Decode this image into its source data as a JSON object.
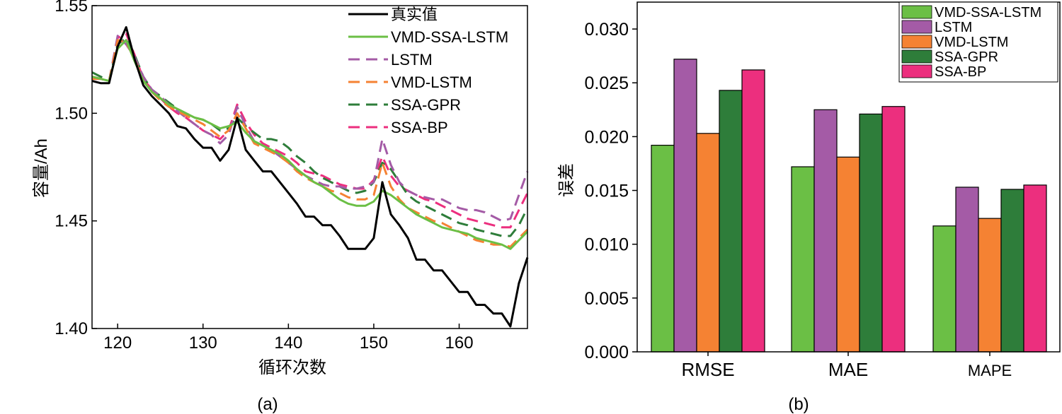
{
  "colors": {
    "actual": "#000000",
    "vmd_ssa_lstm": "#6bbf45",
    "lstm": "#a45ba6",
    "vmd_lstm": "#f58233",
    "ssa_gpr": "#2e7d3a",
    "ssa_bp": "#ec2f7e"
  },
  "chart_data": [
    {
      "id": "a",
      "type": "line",
      "panel_label": "(a)",
      "xlabel": "循环次数",
      "ylabel": "容量/Ah",
      "xlim": [
        117,
        168
      ],
      "ylim": [
        1.4,
        1.55
      ],
      "xticks": [
        120,
        130,
        140,
        150,
        160
      ],
      "yticks": [
        "1.40",
        "1.45",
        "1.50",
        "1.55"
      ],
      "legend_position": "top-right",
      "x": [
        117,
        118,
        119,
        120,
        121,
        122,
        123,
        124,
        125,
        126,
        127,
        128,
        129,
        130,
        131,
        132,
        133,
        134,
        135,
        136,
        137,
        138,
        139,
        140,
        141,
        142,
        143,
        144,
        145,
        146,
        147,
        148,
        149,
        150,
        151,
        152,
        153,
        154,
        155,
        156,
        157,
        158,
        159,
        160,
        161,
        162,
        163,
        164,
        165,
        166,
        167,
        168
      ],
      "series": [
        {
          "name": "真实值",
          "style": "solid",
          "colorKey": "actual",
          "values": [
            1.515,
            1.514,
            1.514,
            1.531,
            1.54,
            1.525,
            1.513,
            1.508,
            1.504,
            1.5,
            1.494,
            1.493,
            1.488,
            1.484,
            1.484,
            1.478,
            1.483,
            1.498,
            1.483,
            1.478,
            1.473,
            1.473,
            1.468,
            1.463,
            1.458,
            1.452,
            1.452,
            1.448,
            1.448,
            1.443,
            1.437,
            1.437,
            1.437,
            1.442,
            1.468,
            1.453,
            1.448,
            1.442,
            1.432,
            1.432,
            1.427,
            1.427,
            1.422,
            1.417,
            1.417,
            1.411,
            1.411,
            1.407,
            1.407,
            1.401,
            1.421,
            1.433
          ]
        },
        {
          "name": "VMD-SSA-LSTM",
          "style": "solid",
          "colorKey": "vmd_ssa_lstm",
          "values": [
            1.517,
            1.516,
            1.515,
            1.53,
            1.534,
            1.524,
            1.515,
            1.51,
            1.507,
            1.504,
            1.502,
            1.5,
            1.498,
            1.497,
            1.495,
            1.493,
            1.494,
            1.496,
            1.491,
            1.487,
            1.485,
            1.483,
            1.481,
            1.478,
            1.474,
            1.471,
            1.468,
            1.466,
            1.463,
            1.46,
            1.458,
            1.457,
            1.457,
            1.459,
            1.464,
            1.462,
            1.459,
            1.456,
            1.453,
            1.451,
            1.449,
            1.447,
            1.446,
            1.445,
            1.444,
            1.442,
            1.441,
            1.44,
            1.439,
            1.437,
            1.441,
            1.445
          ]
        },
        {
          "name": "LSTM",
          "style": "dashed",
          "colorKey": "lstm",
          "values": [
            1.516,
            1.516,
            1.515,
            1.536,
            1.532,
            1.526,
            1.517,
            1.511,
            1.508,
            1.504,
            1.501,
            1.498,
            1.495,
            1.492,
            1.49,
            1.486,
            1.49,
            1.503,
            1.494,
            1.487,
            1.485,
            1.483,
            1.48,
            1.477,
            1.474,
            1.471,
            1.469,
            1.467,
            1.466,
            1.466,
            1.465,
            1.465,
            1.466,
            1.468,
            1.488,
            1.476,
            1.468,
            1.464,
            1.462,
            1.461,
            1.46,
            1.46,
            1.458,
            1.456,
            1.455,
            1.455,
            1.454,
            1.452,
            1.45,
            1.451,
            1.462,
            1.473
          ]
        },
        {
          "name": "VMD-LSTM",
          "style": "dashed",
          "colorKey": "vmd_lstm",
          "values": [
            1.516,
            1.516,
            1.515,
            1.534,
            1.533,
            1.525,
            1.515,
            1.51,
            1.506,
            1.503,
            1.501,
            1.499,
            1.497,
            1.495,
            1.492,
            1.489,
            1.492,
            1.5,
            1.493,
            1.486,
            1.484,
            1.482,
            1.48,
            1.477,
            1.473,
            1.47,
            1.468,
            1.466,
            1.464,
            1.463,
            1.461,
            1.46,
            1.46,
            1.462,
            1.477,
            1.466,
            1.46,
            1.456,
            1.454,
            1.452,
            1.45,
            1.449,
            1.447,
            1.445,
            1.443,
            1.441,
            1.44,
            1.439,
            1.439,
            1.438,
            1.442,
            1.446
          ]
        },
        {
          "name": "SSA-GPR",
          "style": "dashed",
          "colorKey": "ssa_gpr",
          "values": [
            1.519,
            1.517,
            1.515,
            1.532,
            1.535,
            1.527,
            1.517,
            1.511,
            1.508,
            1.505,
            1.502,
            1.5,
            1.498,
            1.497,
            1.495,
            1.492,
            1.493,
            1.498,
            1.494,
            1.491,
            1.488,
            1.488,
            1.487,
            1.484,
            1.48,
            1.477,
            1.473,
            1.47,
            1.468,
            1.466,
            1.464,
            1.463,
            1.464,
            1.468,
            1.477,
            1.474,
            1.468,
            1.462,
            1.459,
            1.457,
            1.455,
            1.453,
            1.451,
            1.449,
            1.448,
            1.446,
            1.445,
            1.444,
            1.443,
            1.443,
            1.448,
            1.456
          ]
        },
        {
          "name": "SSA-BP",
          "style": "dashed",
          "colorKey": "ssa_bp",
          "values": [
            1.517,
            1.516,
            1.515,
            1.535,
            1.537,
            1.527,
            1.516,
            1.511,
            1.507,
            1.503,
            1.5,
            1.498,
            1.495,
            1.492,
            1.49,
            1.488,
            1.492,
            1.504,
            1.496,
            1.49,
            1.486,
            1.484,
            1.482,
            1.48,
            1.477,
            1.473,
            1.472,
            1.471,
            1.469,
            1.467,
            1.466,
            1.465,
            1.465,
            1.469,
            1.48,
            1.471,
            1.466,
            1.464,
            1.462,
            1.46,
            1.459,
            1.457,
            1.455,
            1.453,
            1.451,
            1.45,
            1.449,
            1.448,
            1.447,
            1.447,
            1.455,
            1.463
          ]
        }
      ]
    },
    {
      "id": "b",
      "type": "bar",
      "panel_label": "(b)",
      "xlabel": "",
      "ylabel": "误差",
      "ylim": [
        0.0,
        0.0325
      ],
      "yticks": [
        "0.000",
        "0.005",
        "0.010",
        "0.015",
        "0.020",
        "0.025",
        "0.030"
      ],
      "legend_position": "top-right",
      "categories": [
        "RMSE",
        "MAE",
        "MAPE"
      ],
      "series": [
        {
          "name": "VMD-SSA-LSTM",
          "colorKey": "vmd_ssa_lstm",
          "values": [
            0.0192,
            0.0172,
            0.0117
          ]
        },
        {
          "name": "LSTM",
          "colorKey": "lstm",
          "values": [
            0.0272,
            0.0225,
            0.0153
          ]
        },
        {
          "name": "VMD-LSTM",
          "colorKey": "vmd_lstm",
          "values": [
            0.0203,
            0.0181,
            0.0124
          ]
        },
        {
          "name": "SSA-GPR",
          "colorKey": "ssa_gpr",
          "values": [
            0.0243,
            0.0221,
            0.0151
          ]
        },
        {
          "name": "SSA-BP",
          "colorKey": "ssa_bp",
          "values": [
            0.0262,
            0.0228,
            0.0155
          ]
        }
      ]
    }
  ]
}
